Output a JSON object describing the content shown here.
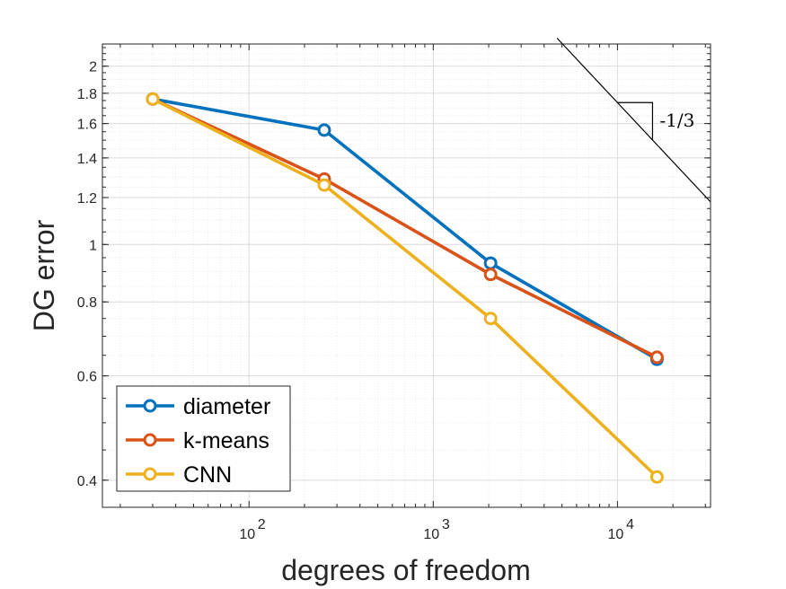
{
  "chart_data": {
    "type": "line",
    "xscale": "log",
    "yscale": "log",
    "xlabel": "degrees of freedom",
    "ylabel": "DG error",
    "xlim": [
      16,
      32000
    ],
    "ylim": [
      0.36,
      2.18
    ],
    "xticks": [
      {
        "value": 100,
        "base": "10",
        "exp": "2"
      },
      {
        "value": 1000,
        "base": "10",
        "exp": "3"
      },
      {
        "value": 10000,
        "base": "10",
        "exp": "4"
      }
    ],
    "yticks": [
      {
        "value": 0.4,
        "label": "0.4"
      },
      {
        "value": 0.6,
        "label": "0.6"
      },
      {
        "value": 0.8,
        "label": "0.8"
      },
      {
        "value": 1.0,
        "label": "1"
      },
      {
        "value": 1.2,
        "label": "1.2"
      },
      {
        "value": 1.4,
        "label": "1.4"
      },
      {
        "value": 1.6,
        "label": "1.6"
      },
      {
        "value": 1.8,
        "label": "1.8"
      },
      {
        "value": 2.0,
        "label": "2"
      }
    ],
    "grid": true,
    "legend_position": "bottom-left",
    "series": [
      {
        "name": "diameter",
        "color": "#0072BD",
        "x": [
          30,
          256,
          2048,
          16384
        ],
        "y": [
          1.76,
          1.56,
          0.93,
          0.64
        ]
      },
      {
        "name": "k-means",
        "color": "#D95319",
        "x": [
          30,
          256,
          2048,
          16384
        ],
        "y": [
          1.76,
          1.29,
          0.89,
          0.645
        ]
      },
      {
        "name": "CNN",
        "color": "#EDB120",
        "x": [
          30,
          256,
          2048,
          16384
        ],
        "y": [
          1.76,
          1.26,
          0.75,
          0.405
        ]
      }
    ],
    "slope_annotation": {
      "label": "-1/3",
      "line_x": [
        4700,
        32000
      ],
      "line_y": [
        2.23,
        1.18
      ],
      "triangle_x": [
        10000,
        15500
      ],
      "color": "#000000"
    }
  }
}
